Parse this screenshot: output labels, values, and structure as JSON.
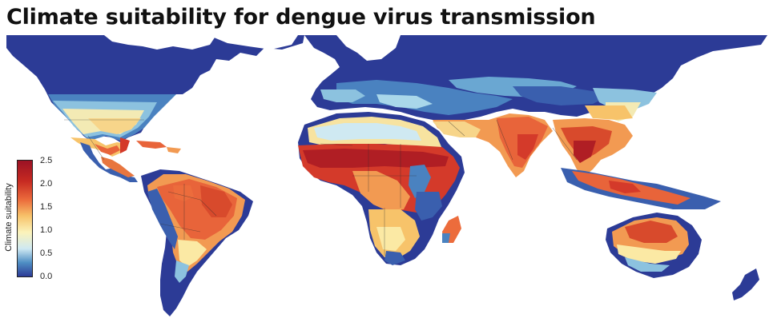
{
  "title": "Climate suitability for dengue virus transmission",
  "legend": {
    "label": "Climate suitability",
    "ticks": [
      "2.5",
      "2.0",
      "1.5",
      "1.0",
      "0.5",
      "0.0"
    ],
    "range": [
      0.0,
      2.5
    ],
    "colors": [
      "#2c3b96",
      "#4f8fc4",
      "#cfe9f2",
      "#fbf3bb",
      "#f7c36a",
      "#ec6c3c",
      "#c72a22",
      "#9b1224"
    ]
  },
  "map": {
    "ocean_color": "#ffffff",
    "land_color_low": "#2c3b96",
    "border_color": "#2b2b2b"
  }
}
